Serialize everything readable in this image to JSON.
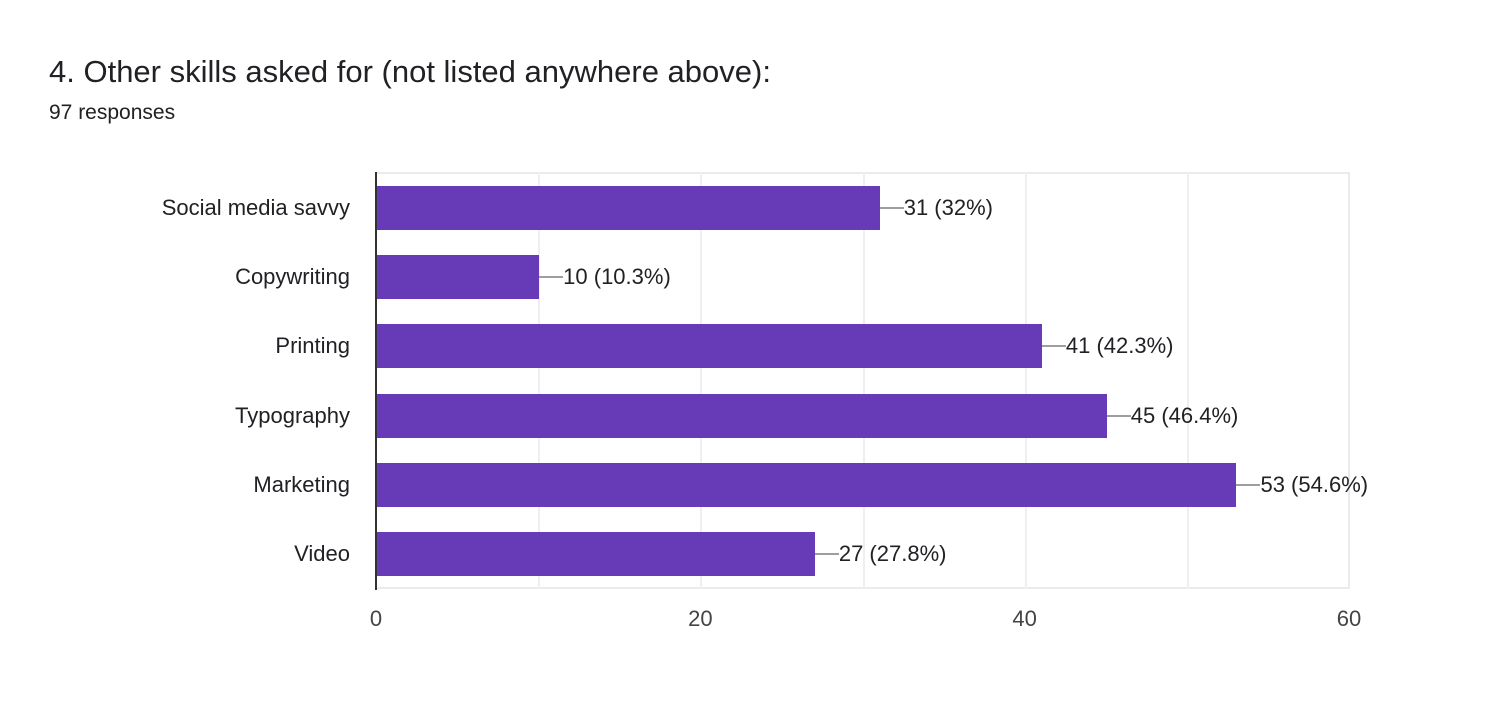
{
  "header": {
    "title": "4. Other skills asked for (not listed anywhere above):",
    "responses": "97 responses"
  },
  "colors": {
    "bar": "#673ab7",
    "grid": "#efefef",
    "axis": "#333333"
  },
  "chart_data": {
    "type": "bar",
    "orientation": "horizontal",
    "title": "4. Other skills asked for (not listed anywhere above):",
    "subtitle": "97 responses",
    "categories": [
      "Social media savvy",
      "Copywriting",
      "Printing",
      "Typography",
      "Marketing",
      "Video"
    ],
    "values": [
      31,
      10,
      41,
      45,
      53,
      27
    ],
    "percentages": [
      32,
      10.3,
      42.3,
      46.4,
      54.6,
      27.8
    ],
    "labels": [
      "31 (32%)",
      "10 (10.3%)",
      "41 (42.3%)",
      "45 (46.4%)",
      "53 (54.6%)",
      "27 (27.8%)"
    ],
    "xlabel": "",
    "ylabel": "",
    "xlim": [
      0,
      60
    ],
    "xticks": [
      "0",
      "20",
      "40",
      "60"
    ],
    "grid": true,
    "legend": "none"
  }
}
